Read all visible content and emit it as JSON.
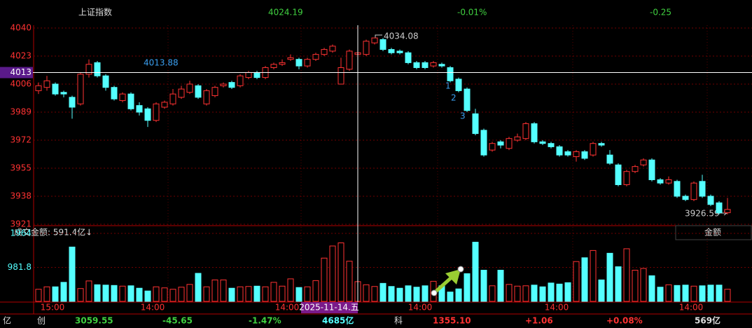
{
  "header": {
    "name": "上证指数",
    "price": "4024.19",
    "change_pct": "-0.01%",
    "change": "-0.25"
  },
  "chart_data": {
    "type": "candlestick",
    "ylim": [
      3921,
      4040
    ],
    "yticks": [
      4040,
      4023,
      4006,
      3989,
      3972,
      3955,
      3938,
      3921
    ],
    "crosshair_value": 4013,
    "crosshair_date": "2025-11-14.五",
    "x_tick_labels": [
      "15:00",
      "14:00",
      "14:00",
      "14:00",
      "14:00",
      "14:00"
    ],
    "up_color": "#ff3232",
    "down_color": "#54ffff",
    "grid": true,
    "annotations": {
      "highlight": "4013.88",
      "step1": "1",
      "step2": "2",
      "step3": "3",
      "high": "4034.08",
      "low": "3926.59"
    },
    "open": [
      4002,
      4004,
      4006,
      4001,
      3998,
      3994,
      4012,
      4019,
      4011,
      4004,
      3996,
      4000,
      3993,
      3991,
      3984,
      3992,
      3994,
      3998,
      4001,
      4005,
      3994,
      3999,
      4005,
      4007,
      4005,
      4010,
      4013,
      4010,
      4016,
      4018,
      4021,
      4021,
      4017,
      4021,
      4024,
      4026,
      4006,
      4015,
      4024,
      4024,
      4031,
      4033,
      4027,
      4026,
      4025,
      4019,
      4019,
      4017,
      4018,
      4016,
      4009,
      4003,
      3988,
      3978,
      3966,
      3971,
      3967,
      3972,
      3973,
      3982,
      3971,
      3970,
      3968,
      3965,
      3962,
      3965,
      3963,
      3970,
      3963,
      3957,
      3945,
      3953,
      3957,
      3960,
      3948,
      3946,
      3947,
      3938,
      3936,
      3947,
      3938,
      3934,
      3928
    ],
    "high": [
      4007,
      4011,
      4007,
      4002,
      3999,
      4013,
      4021,
      4020,
      4012,
      4005,
      4001,
      4001,
      3995,
      3992,
      3995,
      3996,
      4003,
      4005,
      4008,
      4006,
      4003,
      4005,
      4007,
      4008,
      4012,
      4014,
      4014,
      4017,
      4019,
      4021,
      4024,
      4022,
      4022,
      4025,
      4028,
      4030,
      4022,
      4027,
      4027,
      4033,
      4034,
      4034,
      4028,
      4027,
      4026,
      4020,
      4020,
      4020,
      4019,
      4017,
      4010,
      4004,
      3991,
      3979,
      3971,
      3972,
      3974,
      3976,
      3983,
      3983,
      3972,
      3971,
      3969,
      3966,
      3966,
      3966,
      3971,
      3971,
      3966,
      3958,
      3954,
      3957,
      3961,
      3961,
      3949,
      3950,
      3948,
      3939,
      3947,
      3951,
      3939,
      3935,
      3937
    ],
    "low": [
      4000,
      4002,
      3999,
      3998,
      3985,
      3993,
      4010,
      4010,
      4002,
      3996,
      3995,
      3990,
      3987,
      3980,
      3983,
      3991,
      3993,
      3997,
      4000,
      3997,
      3993,
      3998,
      4004,
      4003,
      4004,
      4009,
      4009,
      4009,
      4015,
      4017,
      4020,
      4015,
      4016,
      4020,
      4023,
      4025,
      4006,
      4014,
      4022,
      4023,
      4030,
      4026,
      4024,
      4024,
      4018,
      4015,
      4015,
      4016,
      4016,
      4007,
      4001,
      3989,
      3975,
      3962,
      3965,
      3967,
      3966,
      3971,
      3972,
      3970,
      3969,
      3967,
      3962,
      3962,
      3959,
      3960,
      3962,
      3968,
      3957,
      3944,
      3944,
      3952,
      3956,
      3947,
      3945,
      3945,
      3937,
      3935,
      3935,
      3937,
      3932,
      3927,
      3927
    ],
    "close": [
      4005,
      4008,
      4000,
      4000,
      3992,
      4012,
      4018,
      4011,
      4004,
      3997,
      4000,
      3991,
      3989,
      3984,
      3994,
      3995,
      4000,
      4003,
      4006,
      3998,
      4002,
      4004,
      4006,
      4004,
      4011,
      4013,
      4010,
      4016,
      4018,
      4019,
      4022,
      4017,
      4021,
      4024,
      4027,
      4029,
      4016,
      4026,
      4025,
      4032,
      4034,
      4027,
      4025,
      4025,
      4019,
      4016,
      4016,
      4019,
      4017,
      4008,
      4002,
      3990,
      3976,
      3963,
      3970,
      3969,
      3973,
      3974,
      3982,
      3971,
      3970,
      3968,
      3963,
      3963,
      3965,
      3961,
      3970,
      3969,
      3958,
      3945,
      3953,
      3956,
      3960,
      3948,
      3946,
      3948,
      3938,
      3936,
      3946,
      3938,
      3933,
      3928,
      3930
    ],
    "volume_label": "成交金额: 591.4亿↓",
    "volume_selector": "金额",
    "volume_ylim": [
      0,
      1964
    ],
    "volume_yticks": [
      1964,
      981.8
    ],
    "volume": [
      350,
      420,
      420,
      550,
      1570,
      370,
      590,
      480,
      470,
      460,
      440,
      450,
      380,
      300,
      420,
      390,
      350,
      410,
      490,
      810,
      420,
      620,
      620,
      380,
      420,
      430,
      440,
      420,
      550,
      440,
      650,
      400,
      420,
      600,
      1250,
      1600,
      1690,
      1160,
      570,
      480,
      430,
      520,
      430,
      380,
      450,
      410,
      450,
      580,
      450,
      270,
      360,
      800,
      1710,
      900,
      450,
      900,
      490,
      440,
      450,
      470,
      420,
      530,
      500,
      540,
      1150,
      1260,
      1470,
      620,
      1390,
      1000,
      1520,
      900,
      950,
      740,
      410,
      480,
      460,
      470,
      440,
      450,
      470,
      470,
      350
    ]
  },
  "footer": {
    "unit": "亿",
    "idx1": "创",
    "idx1_price": "3059.55",
    "idx1_change": "-45.65",
    "idx1_pct": "-1.47%",
    "idx1_amount": "4685亿",
    "idx2": "科",
    "idx2_price": "1355.10",
    "idx2_change": "+1.06",
    "idx2_pct": "+0.08%",
    "idx2_amount": "569亿"
  }
}
